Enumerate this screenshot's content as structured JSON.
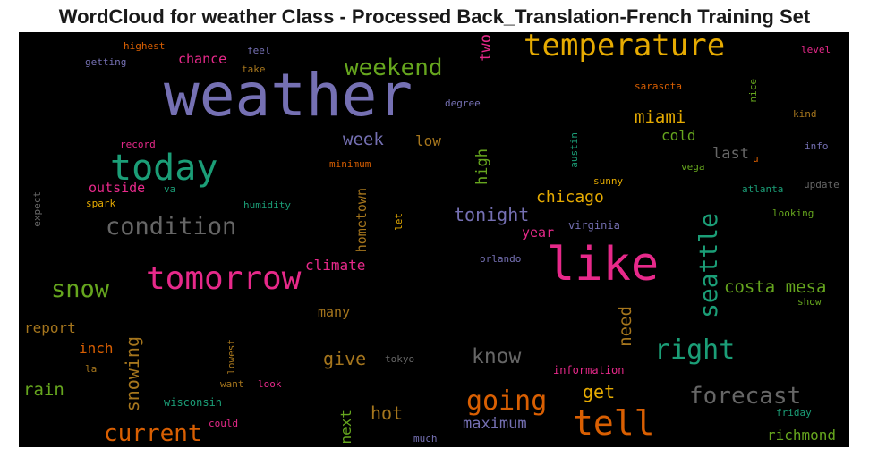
{
  "title": "WordCloud for weather Class - Processed Back_Translation-French Training Set",
  "palette": {
    "purple": "#7570b3",
    "green": "#1b9e77",
    "orange": "#d95f02",
    "magenta": "#e7298a",
    "lime": "#66a61e",
    "gold": "#e6ab02",
    "brown": "#a6761d",
    "gray": "#666666",
    "background": "#000000"
  },
  "words": [
    "weather",
    "temperature",
    "like",
    "tell",
    "today",
    "tomorrow",
    "seattle",
    "condition",
    "right",
    "weekend",
    "snow",
    "going",
    "forecast",
    "current",
    "costa mesa",
    "know",
    "miami",
    "week",
    "tonight",
    "chicago",
    "give",
    "hot",
    "get",
    "climate",
    "snowing",
    "rain",
    "need",
    "maximum",
    "richmond",
    "two",
    "inch",
    "report",
    "outside",
    "cold",
    "last",
    "high",
    "hometown",
    "many",
    "chance",
    "year",
    "next",
    "low",
    "information",
    "virginia",
    "austin",
    "wisconsin",
    "friday",
    "sarasota",
    "nice",
    "degree",
    "highest",
    "getting",
    "feel",
    "take",
    "record",
    "minimum",
    "va",
    "spark",
    "humidity",
    "expect",
    "let",
    "orlando",
    "atlanta",
    "update",
    "looking",
    "show",
    "kind",
    "info",
    "u",
    "vega",
    "sunny",
    "level",
    "tokyo",
    "lowest",
    "want",
    "look",
    "la",
    "could",
    "much"
  ]
}
